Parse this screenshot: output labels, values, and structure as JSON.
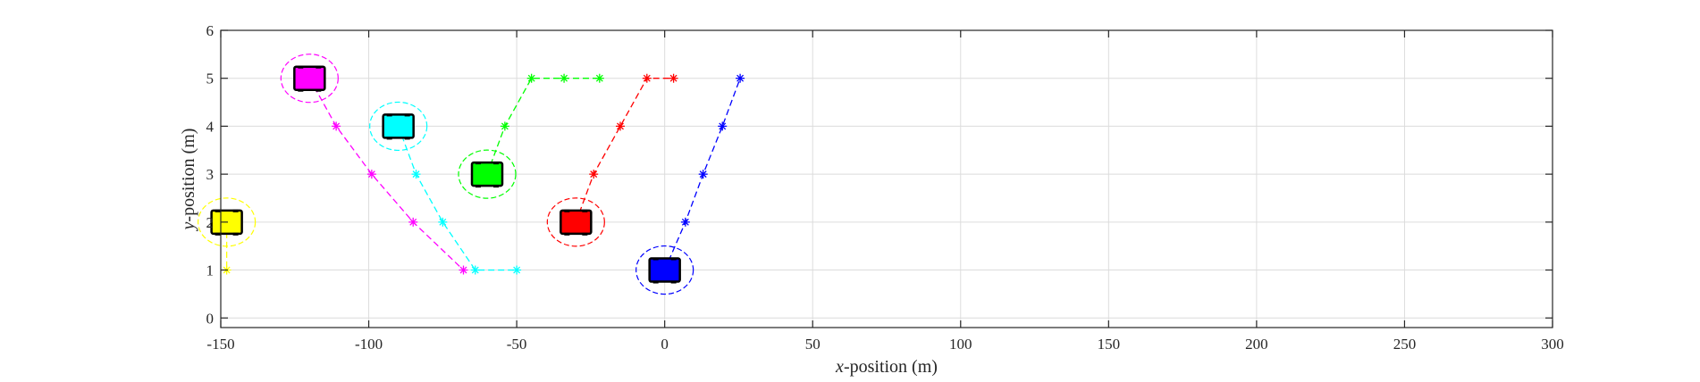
{
  "chart_data": {
    "type": "line",
    "title": "",
    "xlabel_var": "x",
    "xlabel_rest": "-position (m)",
    "ylabel_var": "y",
    "ylabel_rest": "-position (m)",
    "xlim": [
      -150,
      300
    ],
    "ylim": [
      -0.2,
      6
    ],
    "xticks": [
      -150,
      -100,
      -50,
      0,
      50,
      100,
      150,
      200,
      250,
      300
    ],
    "yticks": [
      0,
      1,
      2,
      3,
      4,
      5,
      6
    ],
    "grid": true,
    "series": [
      {
        "color": "#0000ff",
        "vehicle": {
          "x": 0,
          "y": 1
        },
        "path": [
          {
            "x": 0,
            "y": 1
          },
          {
            "x": 7,
            "y": 2
          },
          {
            "x": 13,
            "y": 3
          },
          {
            "x": 19.5,
            "y": 4
          },
          {
            "x": 25.5,
            "y": 5
          }
        ],
        "markers": [
          {
            "x": 7,
            "y": 2
          },
          {
            "x": 13,
            "y": 3
          },
          {
            "x": 19.5,
            "y": 4
          },
          {
            "x": 25.5,
            "y": 5
          }
        ]
      },
      {
        "color": "#ff0000",
        "vehicle": {
          "x": -30,
          "y": 2
        },
        "path": [
          {
            "x": -30,
            "y": 2
          },
          {
            "x": -24,
            "y": 3
          },
          {
            "x": -15,
            "y": 4
          },
          {
            "x": -6,
            "y": 5
          },
          {
            "x": 3,
            "y": 5
          }
        ],
        "markers": [
          {
            "x": -24,
            "y": 3
          },
          {
            "x": -15,
            "y": 4
          },
          {
            "x": -6,
            "y": 5
          },
          {
            "x": 3,
            "y": 5
          }
        ]
      },
      {
        "color": "#00ff00",
        "vehicle": {
          "x": -60,
          "y": 3
        },
        "path": [
          {
            "x": -60,
            "y": 3
          },
          {
            "x": -54,
            "y": 4
          },
          {
            "x": -45,
            "y": 5
          },
          {
            "x": -34,
            "y": 5
          },
          {
            "x": -22,
            "y": 5
          }
        ],
        "markers": [
          {
            "x": -54,
            "y": 4
          },
          {
            "x": -45,
            "y": 5
          },
          {
            "x": -34,
            "y": 5
          },
          {
            "x": -22,
            "y": 5
          }
        ]
      },
      {
        "color": "#00ffff",
        "vehicle": {
          "x": -90,
          "y": 4
        },
        "path": [
          {
            "x": -90,
            "y": 4
          },
          {
            "x": -84,
            "y": 3
          },
          {
            "x": -75,
            "y": 2
          },
          {
            "x": -64,
            "y": 1
          },
          {
            "x": -50,
            "y": 1
          }
        ],
        "markers": [
          {
            "x": -84,
            "y": 3
          },
          {
            "x": -75,
            "y": 2
          },
          {
            "x": -64,
            "y": 1
          },
          {
            "x": -50,
            "y": 1
          }
        ]
      },
      {
        "color": "#ff00ff",
        "vehicle": {
          "x": -120,
          "y": 5
        },
        "path": [
          {
            "x": -120,
            "y": 5
          },
          {
            "x": -111,
            "y": 4
          },
          {
            "x": -99,
            "y": 3
          },
          {
            "x": -85,
            "y": 2
          },
          {
            "x": -68,
            "y": 1
          }
        ],
        "markers": [
          {
            "x": -111,
            "y": 4
          },
          {
            "x": -99,
            "y": 3
          },
          {
            "x": -85,
            "y": 2
          },
          {
            "x": -68,
            "y": 1
          }
        ]
      },
      {
        "color": "#ffff00",
        "vehicle": {
          "x": -148,
          "y": 2
        },
        "path": [
          {
            "x": -148,
            "y": 2
          },
          {
            "x": -148,
            "y": 1
          }
        ],
        "markers": [
          {
            "x": -148,
            "y": 1
          }
        ]
      }
    ]
  }
}
